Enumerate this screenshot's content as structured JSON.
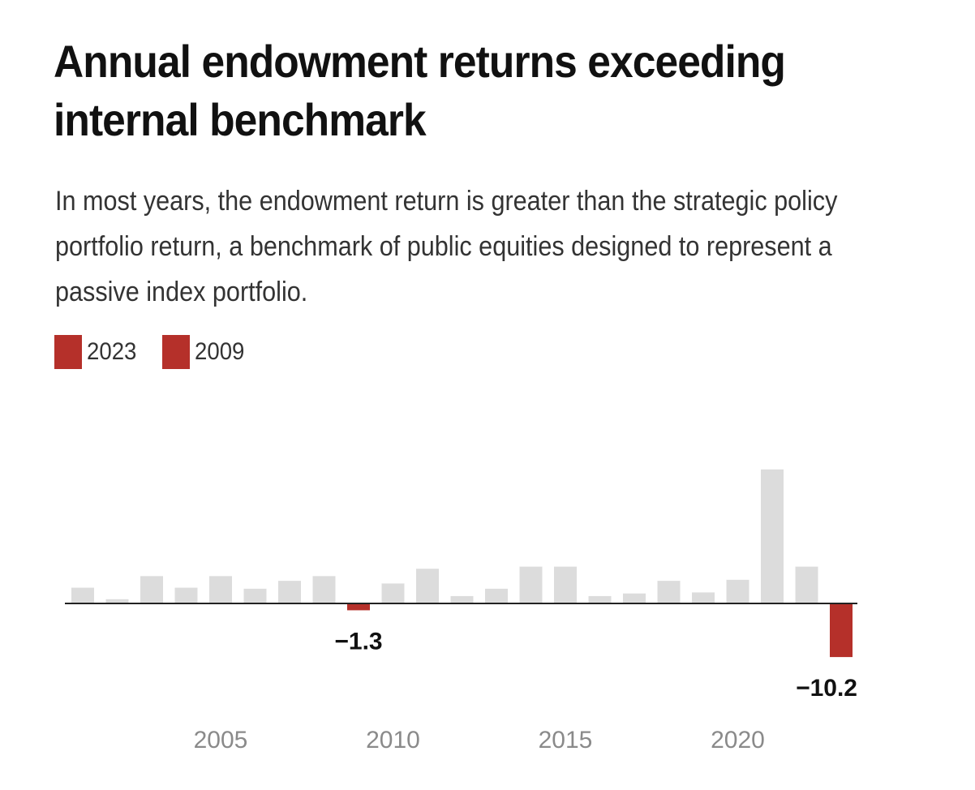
{
  "title": "Annual endowment returns exceeding internal benchmark",
  "subtitle": "In most years, the endowment return is greater than the strategic policy portfolio return, a benchmark of public equities designed to represent a passive index portfolio.",
  "legend": [
    {
      "label": "2023",
      "color": "#b5302a"
    },
    {
      "label": "2009",
      "color": "#b5302a"
    }
  ],
  "colors": {
    "bar": "#dcdcdc",
    "highlight": "#b5302a",
    "axis": "#222222"
  },
  "chart_data": {
    "type": "bar",
    "title": "Annual endowment returns exceeding internal benchmark",
    "xlabel": "",
    "ylabel": "",
    "categories": [
      2001,
      2002,
      2003,
      2004,
      2005,
      2006,
      2007,
      2008,
      2009,
      2010,
      2011,
      2012,
      2013,
      2014,
      2015,
      2016,
      2017,
      2018,
      2019,
      2020,
      2021,
      2022,
      2023
    ],
    "values": [
      3.0,
      0.8,
      5.2,
      3.0,
      5.2,
      2.8,
      4.3,
      5.2,
      -1.3,
      3.8,
      6.6,
      1.4,
      2.8,
      7.0,
      7.0,
      1.4,
      1.9,
      4.3,
      2.1,
      4.5,
      25.5,
      7.0,
      -10.2
    ],
    "highlighted": [
      2009,
      2023
    ],
    "data_labels": [
      {
        "year": 2009,
        "text": "−1.3"
      },
      {
        "year": 2023,
        "text": "−10.2"
      }
    ],
    "xticks": [
      2005,
      2010,
      2015,
      2020
    ],
    "xtick_labels": [
      "2005",
      "2010",
      "2015",
      "2020"
    ],
    "ylim": [
      -12,
      27
    ],
    "grid": false
  }
}
